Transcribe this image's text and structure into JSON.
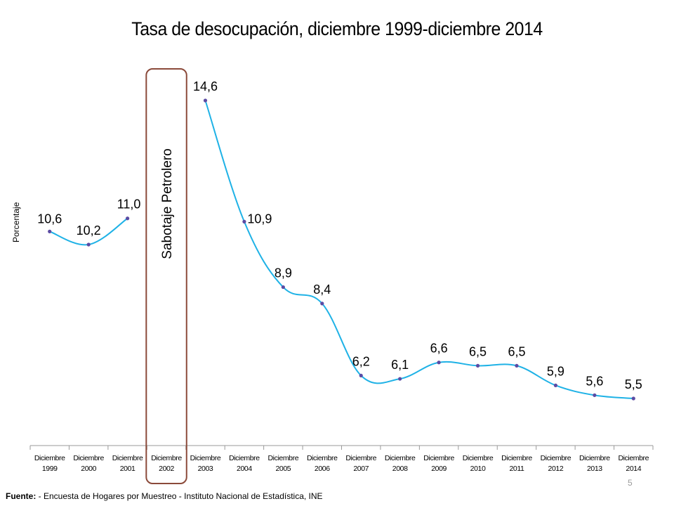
{
  "slide": {
    "page_number": "5",
    "footer_label": "Fuente:",
    "footer_text": " - Encuesta de Hogares por Muestreo  - Instituto Nacional de Estadística, INE"
  },
  "colors": {
    "line": "#1fb2e6",
    "marker": "#5b4ba3",
    "annotation_box": "#8b4a3a"
  },
  "chart_data": {
    "type": "line",
    "title": "Tasa de desocupación, diciembre 1999-diciembre 2014",
    "ylabel": "Porcentaje",
    "xlabel": "",
    "categories": [
      [
        "Diciembre",
        "1999"
      ],
      [
        "Diciembre",
        "2000"
      ],
      [
        "Diciembre",
        "2001"
      ],
      [
        "Diciembre",
        "2002"
      ],
      [
        "Diciembre",
        "2003"
      ],
      [
        "Diciembre",
        "2004"
      ],
      [
        "Diciembre",
        "2005"
      ],
      [
        "Diciembre",
        "2006"
      ],
      [
        "Diciembre",
        "2007"
      ],
      [
        "Diciembre",
        "2008"
      ],
      [
        "Diciembre",
        "2009"
      ],
      [
        "Diciembre",
        "2010"
      ],
      [
        "Diciembre",
        "2011"
      ],
      [
        "Diciembre",
        "2012"
      ],
      [
        "Diciembre",
        "2013"
      ],
      [
        "Diciembre",
        "2014"
      ]
    ],
    "series": [
      {
        "values": [
          10.6,
          10.2,
          11.0,
          null,
          14.6,
          10.9,
          8.9,
          8.4,
          6.2,
          6.1,
          6.6,
          6.5,
          6.5,
          5.9,
          5.6,
          5.5
        ],
        "labels": [
          "10,6",
          "10,2",
          "11,0",
          "",
          "14,6",
          "10,9",
          "8,9",
          "8,4",
          "6,2",
          "6,1",
          "6,6",
          "6,5",
          "6,5",
          "5,9",
          "5,6",
          "5,5"
        ]
      }
    ],
    "annotation": {
      "category_index": 3,
      "text": "Sabotaje Petrolero"
    },
    "smooth": true,
    "grid": false,
    "legend": "none"
  }
}
